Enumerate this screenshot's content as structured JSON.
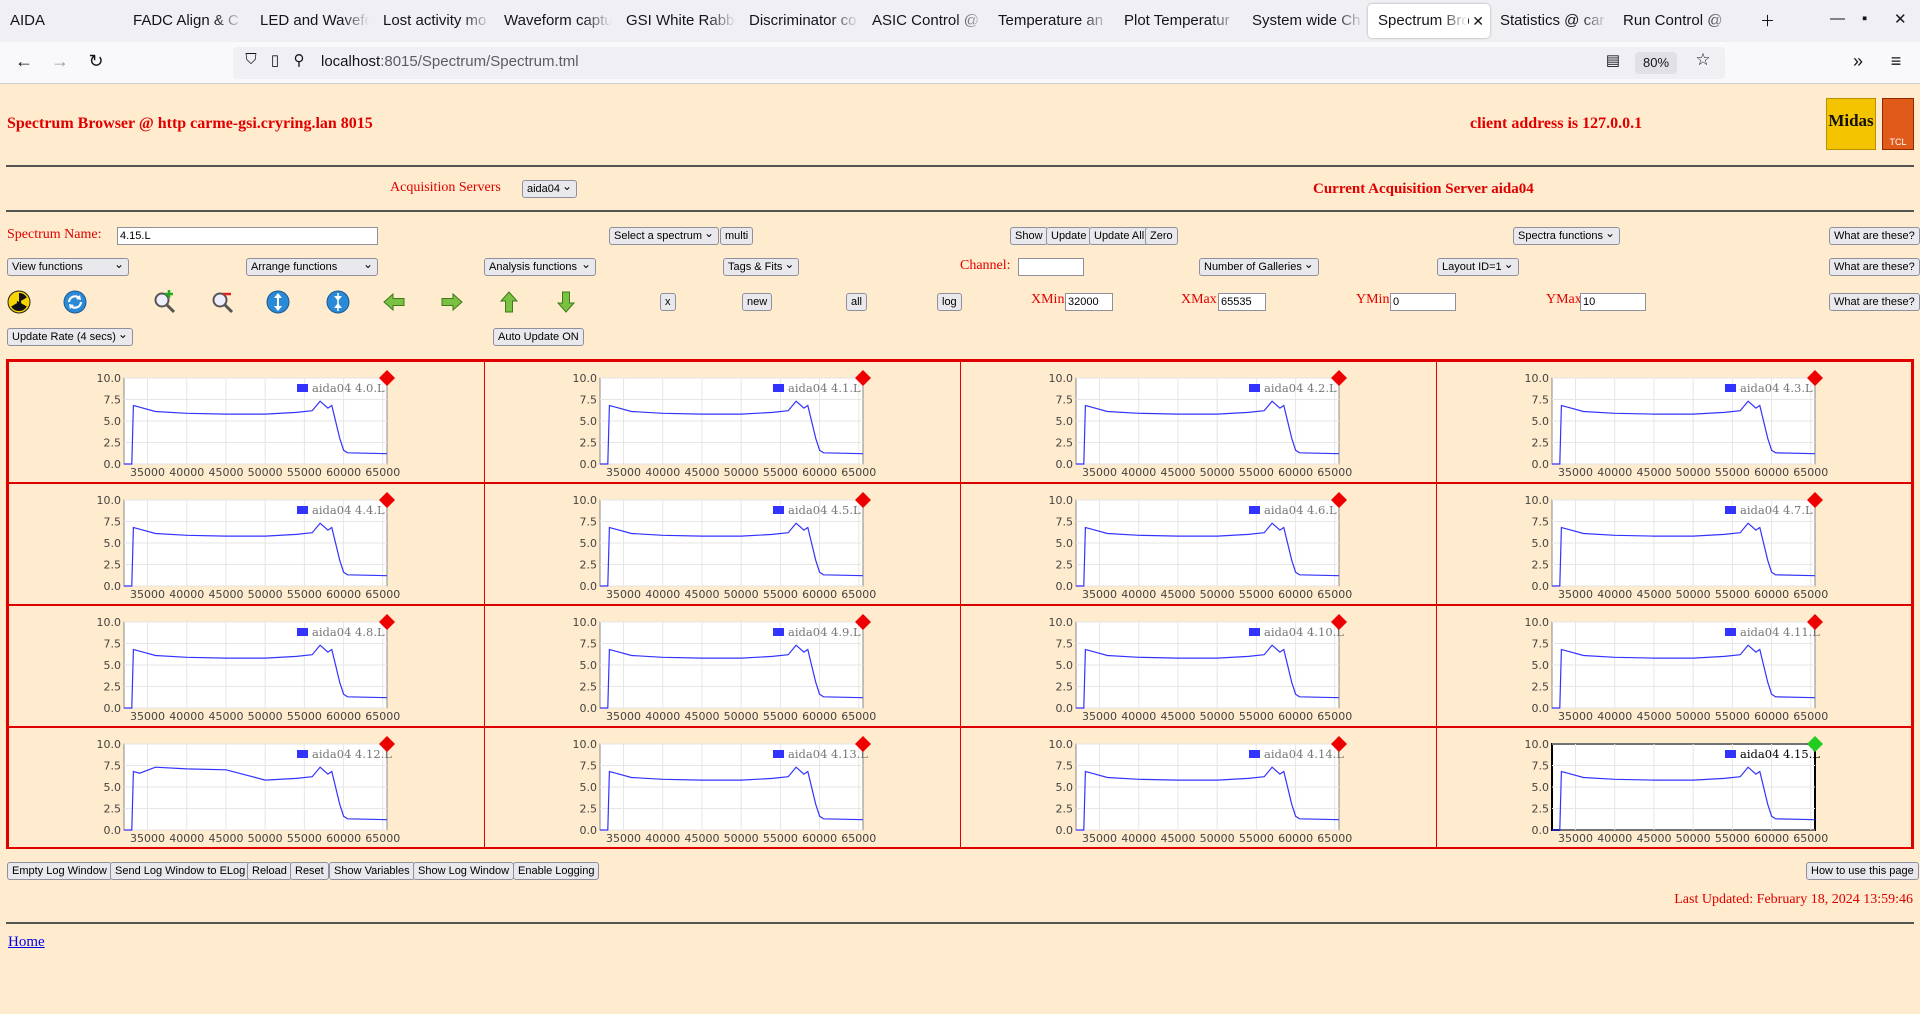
{
  "browser": {
    "tabs": [
      {
        "label": "AIDA",
        "active": false
      },
      {
        "label": "FADC Align & C",
        "active": false
      },
      {
        "label": "LED and Wavefo",
        "active": false
      },
      {
        "label": "Lost activity mo",
        "active": false
      },
      {
        "label": "Waveform captu",
        "active": false
      },
      {
        "label": "GSI White Rabbi",
        "active": false
      },
      {
        "label": "Discriminator co",
        "active": false
      },
      {
        "label": "ASIC Control @",
        "active": false
      },
      {
        "label": "Temperature an",
        "active": false
      },
      {
        "label": "Plot Temperatur",
        "active": false
      },
      {
        "label": "System wide Ch",
        "active": false
      },
      {
        "label": "Spectrum Bro",
        "active": true
      },
      {
        "label": "Statistics @ car",
        "active": false
      },
      {
        "label": "Run Control @",
        "active": false
      }
    ],
    "url_host": "localhost",
    "url_rest": ":8015/Spectrum/Spectrum.tml",
    "zoom": "80%"
  },
  "header": {
    "title": "Spectrum Browser @ http carme-gsi.cryring.lan 8015",
    "client_address": "client address is 127.0.0.1",
    "logo_midas": "Midas",
    "logo_tcl": "TCL"
  },
  "acq": {
    "label": "Acquisition Servers",
    "server_select": "aida04",
    "current": "Current Acquisition Server aida04"
  },
  "row1": {
    "spectrum_name_label": "Spectrum Name:",
    "spectrum_name_value": "4.15.L",
    "select_spectrum": "Select a spectrum",
    "multi": "multi",
    "show": "Show",
    "update": "Update",
    "update_all": "Update All",
    "zero": "Zero",
    "spectra_functions": "Spectra functions",
    "what": "What are these?"
  },
  "row2": {
    "view_functions": "View functions",
    "arrange_functions": "Arrange functions",
    "analysis_functions": "Analysis functions",
    "tags_fits": "Tags & Fits",
    "channel_label": "Channel:",
    "channel_value": "",
    "num_galleries": "Number of Galleries",
    "layout": "Layout ID=1",
    "what": "What are these?"
  },
  "row3": {
    "x": "x",
    "new": "new",
    "all": "all",
    "log": "log",
    "xmin_label": "XMin",
    "xmin_value": "32000",
    "xmax_label": "XMax",
    "xmax_value": "65535",
    "ymin_label": "YMin",
    "ymin_value": "0",
    "ymax_label": "YMax",
    "ymax_value": "10",
    "what": "What are these?",
    "icons": [
      "radiation-icon",
      "refresh-icon",
      "zoom-in-icon",
      "zoom-out-icon",
      "expand-vertical-icon",
      "compress-vertical-icon",
      "arrow-left-icon",
      "arrow-right-icon",
      "arrow-up-icon",
      "arrow-down-icon"
    ]
  },
  "row4": {
    "update_rate": "Update Rate (4 secs)",
    "auto_update": "Auto Update ON"
  },
  "chart_data": {
    "type": "line",
    "xlim": [
      32000,
      65535
    ],
    "ylim": [
      0,
      10
    ],
    "x_ticks": [
      "35000",
      "40000",
      "45000",
      "50000",
      "55000",
      "60000",
      "65000"
    ],
    "y_ticks": [
      "0.0",
      "2.5",
      "5.0",
      "7.5",
      "10.0"
    ],
    "profile": {
      "x": [
        32000,
        33000,
        33200,
        34000,
        36000,
        40000,
        45000,
        50000,
        54000,
        56000,
        57000,
        58000,
        58500,
        59500,
        60000,
        60500,
        65535
      ],
      "y": [
        0,
        0,
        6.8,
        6.6,
        6.1,
        5.9,
        5.8,
        5.8,
        6.0,
        6.2,
        7.3,
        6.5,
        6.8,
        3.0,
        1.6,
        1.3,
        1.2
      ]
    },
    "spectra": [
      {
        "name": "aida04 4.0.L",
        "status": "red"
      },
      {
        "name": "aida04 4.1.L",
        "status": "red"
      },
      {
        "name": "aida04 4.2.L",
        "status": "red"
      },
      {
        "name": "aida04 4.3.L",
        "status": "red"
      },
      {
        "name": "aida04 4.4.L",
        "status": "red"
      },
      {
        "name": "aida04 4.5.L",
        "status": "red"
      },
      {
        "name": "aida04 4.6.L",
        "status": "red"
      },
      {
        "name": "aida04 4.7.L",
        "status": "red"
      },
      {
        "name": "aida04 4.8.L",
        "status": "red"
      },
      {
        "name": "aida04 4.9.L",
        "status": "red"
      },
      {
        "name": "aida04 4.10.L",
        "status": "red"
      },
      {
        "name": "aida04 4.11.L",
        "status": "red"
      },
      {
        "name": "aida04 4.12.L",
        "status": "red"
      },
      {
        "name": "aida04 4.13.L",
        "status": "red"
      },
      {
        "name": "aida04 4.14.L",
        "status": "red"
      },
      {
        "name": "aida04 4.15.L",
        "status": "green",
        "selected": true
      }
    ],
    "series_color": "#3333ff"
  },
  "footer": {
    "empty_log": "Empty Log Window",
    "send_log": "Send Log Window to ELog",
    "reload": "Reload",
    "reset": "Reset",
    "show_vars": "Show Variables",
    "show_log": "Show Log Window",
    "enable_logging": "Enable Logging",
    "how_to": "How to use this page",
    "last_updated": "Last Updated: February 18, 2024 13:59:46",
    "home": "Home"
  }
}
